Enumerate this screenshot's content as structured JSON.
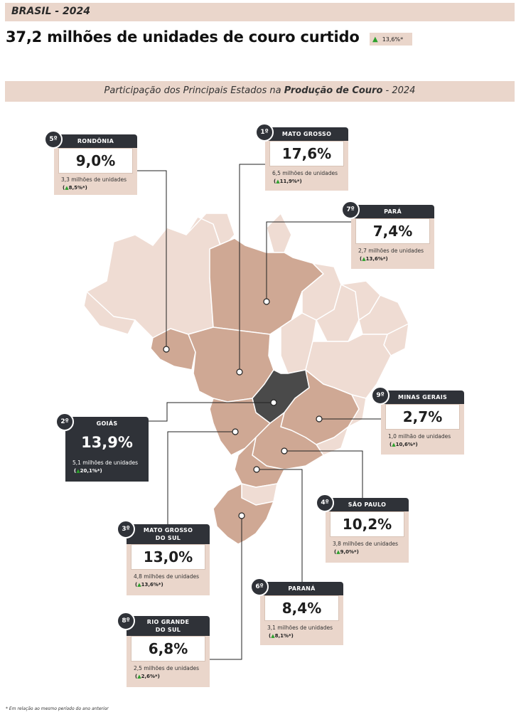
{
  "header": {
    "region": "BRASIL - 2024"
  },
  "headline": {
    "title": "37,2 milhões de unidades de couro curtido",
    "change": "13,6%*",
    "change_direction": "up"
  },
  "subtitle": {
    "prefix": "Participação dos Principais Estados na ",
    "bold": "Produção de Couro",
    "suffix": " - 2024"
  },
  "colors": {
    "accent_bg": "#ead6cb",
    "dark": "#2f3238",
    "state_highlight": "#cfa894",
    "state_base": "#efdcd3",
    "state_goias": "#4a4a4a",
    "up_arrow": "#2ca02c"
  },
  "states": [
    {
      "rank": "5º",
      "name": "RONDÔNIA",
      "share": "9,0%",
      "units": "3,3 milhões de unidades",
      "change": "8,5%*"
    },
    {
      "rank": "1º",
      "name": "MATO GROSSO",
      "share": "17,6%",
      "units": "6,5 milhões de unidades",
      "change": "11,9%*"
    },
    {
      "rank": "7º",
      "name": "PARÁ",
      "share": "7,4%",
      "units": "2,7 milhões de unidades",
      "change": "13,6%*"
    },
    {
      "rank": "2º",
      "name": "GOIÁS",
      "share": "13,9%",
      "units": "5,1 milhões de unidades",
      "change": "20,1%*"
    },
    {
      "rank": "9º",
      "name": "MINAS GERAIS",
      "share": "2,7%",
      "units": "1,0 milhão de unidades",
      "change": "10,6%*"
    },
    {
      "rank": "4º",
      "name": "SÃO PAULO",
      "share": "10,2%",
      "units": "3,8 milhões de unidades",
      "change": "9,0%*"
    },
    {
      "rank": "3º",
      "name": "MATO GROSSO DO SUL",
      "name_l1": "MATO GROSSO",
      "name_l2": "DO SUL",
      "share": "13,0%",
      "units": "4,8 milhões de unidades",
      "change": "13,6%*"
    },
    {
      "rank": "6º",
      "name": "PARANÁ",
      "share": "8,4%",
      "units": "3,1 milhões de unidades",
      "change": "8,1%*"
    },
    {
      "rank": "8º",
      "name": "RIO GRANDE DO SUL",
      "name_l1": "RIO GRANDE",
      "name_l2": "DO SUL",
      "share": "6,8%",
      "units": "2,5 milhões de unidades",
      "change": "2,6%*"
    }
  ],
  "footnote": "* Em relação ao mesmo período do ano anterior"
}
